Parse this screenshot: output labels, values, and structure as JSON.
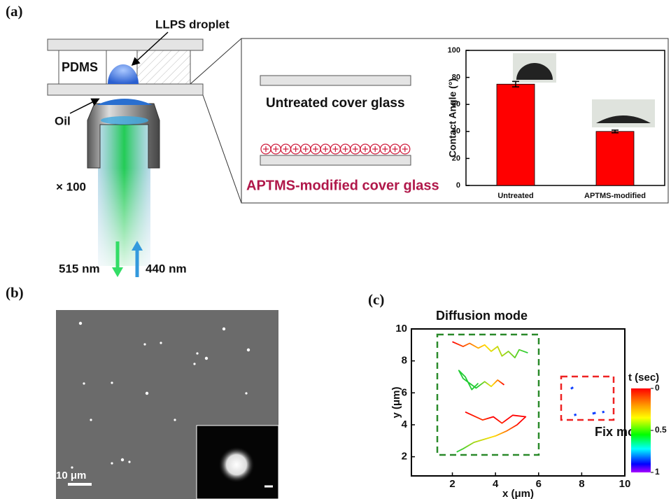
{
  "panels": {
    "a": "(a)",
    "b": "(b)",
    "c": "(c)"
  },
  "diagram": {
    "droplet": "LLPS droplet",
    "pdms": "PDMS",
    "oil": "Oil",
    "magnification": "× 100",
    "emission": "515 nm",
    "excitation": "440 nm",
    "untreated": "Untreated cover glass",
    "modified": "APTMS-modified cover glass"
  },
  "micrograph": {
    "scale_bar": "10 μm"
  },
  "chart_data": [
    {
      "type": "bar",
      "ylabel": "Contact Angle (°)",
      "categories": [
        "Untreated",
        "APTMS-modified"
      ],
      "values": [
        75,
        40
      ],
      "errors": [
        2,
        1
      ],
      "color": "#ff0000",
      "ylim": [
        0,
        100
      ],
      "yticks": [
        0,
        20,
        40,
        60,
        80,
        100
      ]
    },
    {
      "type": "trajectory",
      "xlabel": "x (μm)",
      "ylabel": "y (μm)",
      "annotations": [
        "Diffusion mode",
        "Fix mode"
      ],
      "xlim": [
        0.1,
        10
      ],
      "ylim": [
        0.8,
        10
      ],
      "xticks": [
        2,
        4,
        6,
        8,
        10
      ],
      "yticks": [
        2,
        4,
        6,
        8,
        10
      ],
      "colorbar": {
        "label": "t (sec)",
        "lim": [
          0,
          1
        ],
        "ticks": [
          0,
          0.5,
          1
        ]
      },
      "series": [
        {
          "x": [
            2.0,
            2.5,
            2.8,
            3.2,
            3.5,
            3.8,
            4.1,
            4.3,
            4.6,
            4.9,
            5.1,
            5.5
          ],
          "y": [
            9.2,
            8.9,
            9.1,
            8.8,
            9.0,
            8.6,
            8.9,
            8.3,
            8.6,
            8.2,
            8.7,
            8.5
          ]
        },
        {
          "x": [
            4.4,
            4.1,
            3.8,
            3.5,
            3.1,
            2.8,
            2.5,
            2.3,
            2.6,
            2.9,
            3.2
          ],
          "y": [
            6.5,
            6.8,
            6.4,
            6.7,
            6.3,
            6.6,
            6.9,
            7.4,
            7.0,
            6.2,
            6.6
          ]
        },
        {
          "x": [
            2.6,
            3.4,
            3.9,
            4.3,
            4.8,
            5.4,
            5.0,
            4.5,
            4.0,
            3.5,
            3.0,
            2.5,
            2.2
          ],
          "y": [
            4.8,
            4.3,
            4.5,
            4.1,
            4.6,
            4.5,
            4.0,
            3.6,
            3.3,
            3.1,
            2.9,
            2.5,
            2.3
          ]
        },
        {
          "x": [
            7.5,
            7.6
          ],
          "y": [
            6.25,
            6.35
          ],
          "color": "#1040ff"
        },
        {
          "x": [
            7.65,
            7.75
          ],
          "y": [
            4.6,
            4.65
          ],
          "color": "#1040ff"
        },
        {
          "x": [
            8.5,
            8.65
          ],
          "y": [
            4.7,
            4.75
          ],
          "color": "#1040ff"
        },
        {
          "x": [
            8.95,
            9.05
          ],
          "y": [
            4.78,
            4.82
          ],
          "color": "#1040ff"
        }
      ]
    }
  ]
}
